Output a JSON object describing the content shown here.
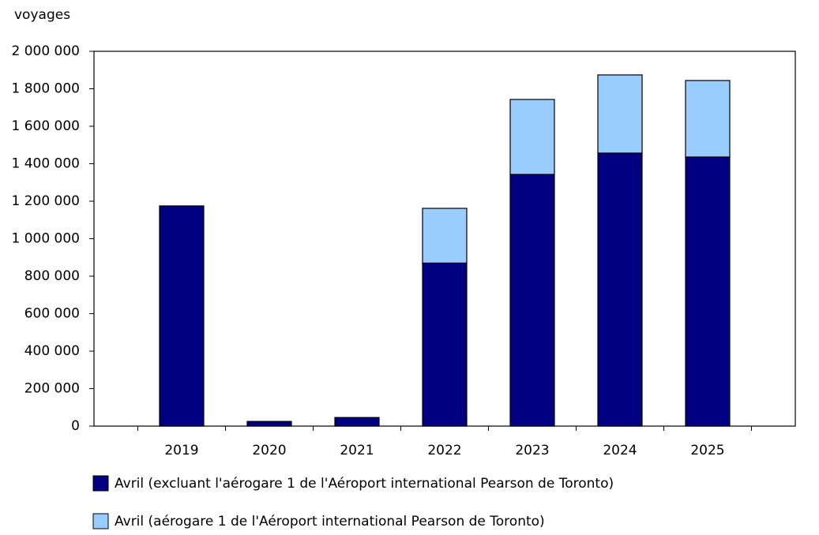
{
  "chart_data": {
    "type": "stacked-bar",
    "y_label": "voyages",
    "categories": [
      "2019",
      "2020",
      "2021",
      "2022",
      "2023",
      "2024",
      "2025"
    ],
    "series": [
      {
        "name": "Avril (excluant l'aérogare 1 de l'Aéroport international Pearson de Toronto)",
        "color": "#000080",
        "values": [
          1175000,
          25000,
          46000,
          870000,
          1343000,
          1457000,
          1436000
        ]
      },
      {
        "name": "Avril (aérogare 1 de l'Aéroport international Pearson de Toronto)",
        "color": "#99ccff",
        "values": [
          null,
          null,
          null,
          292000,
          400000,
          417000,
          408000
        ]
      }
    ],
    "ylim": [
      0,
      2000000
    ],
    "yticks": [
      0,
      {
        "value": 200000,
        "label": "200 000"
      },
      {
        "value": 400000,
        "label": "400 000"
      },
      {
        "value": 600000,
        "label": "600 000"
      },
      {
        "value": 800000,
        "label": "800 000"
      },
      {
        "value": 1000000,
        "label": "1 000 000"
      },
      {
        "value": 1200000,
        "label": "1 200 000"
      },
      {
        "value": 1400000,
        "label": "1 400 000"
      },
      {
        "value": 1600000,
        "label": "1 600 000"
      },
      {
        "value": 1800000,
        "label": "1 800 000"
      },
      {
        "value": 2000000,
        "label": "2 000 000"
      }
    ],
    "grid": false
  }
}
